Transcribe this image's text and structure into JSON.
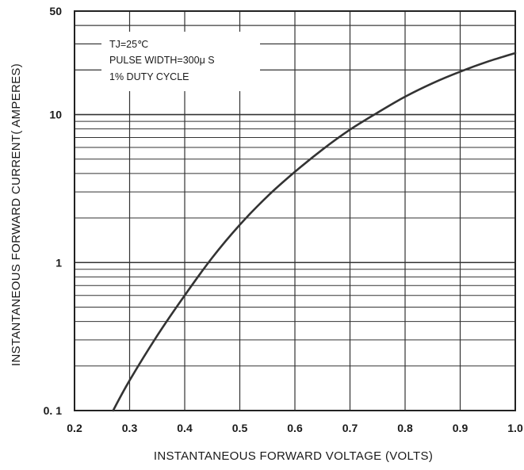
{
  "chart_data": {
    "type": "line",
    "title": "",
    "xlabel": "INSTANTANEOUS FORWARD VOLTAGE (VOLTS)",
    "ylabel": "INSTANTANEOUS FORWARD CURRENT( AMPERES)",
    "xlim": [
      0.2,
      1.0
    ],
    "ylim": [
      0.1,
      50
    ],
    "yscale": "log",
    "grid": true,
    "x_ticks": [
      "0.2",
      "0.3",
      "0.4",
      "0.5",
      "0.6",
      "0.7",
      "0.8",
      "0.9",
      "1.0"
    ],
    "y_ticks": [
      {
        "value": 0.1,
        "label": "0. 1"
      },
      {
        "value": 1,
        "label": "1"
      },
      {
        "value": 10,
        "label": "10"
      },
      {
        "value": 50,
        "label": "50"
      }
    ],
    "annotations": [
      "TJ=25℃",
      "PULSE WIDTH=300μ S",
      "1% DUTY CYCLE"
    ],
    "series": [
      {
        "x": [
          0.27,
          0.3,
          0.35,
          0.4,
          0.45,
          0.5,
          0.55,
          0.6,
          0.65,
          0.7,
          0.75,
          0.8,
          0.85,
          0.9,
          0.95,
          1.0
        ],
        "y": [
          0.1,
          0.16,
          0.32,
          0.6,
          1.08,
          1.8,
          2.8,
          4.1,
          5.8,
          7.9,
          10.3,
          13.2,
          16.3,
          19.5,
          22.8,
          26.0
        ]
      }
    ],
    "colors": {
      "line": "#333333",
      "grid": "#333333",
      "background": "#ffffff"
    }
  }
}
